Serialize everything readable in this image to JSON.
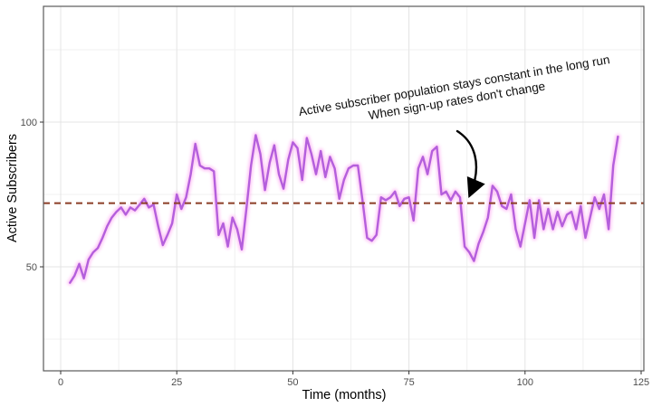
{
  "chart_data": {
    "type": "line",
    "title": "",
    "xlabel": "Time (months)",
    "ylabel": "Active Subscribers",
    "xlim": [
      -3.7,
      125.6
    ],
    "ylim": [
      14,
      140
    ],
    "grid": true,
    "legend": "none",
    "x_ticks": [
      0,
      25,
      50,
      75,
      100,
      125
    ],
    "x_tick_labels": [
      "0",
      "25",
      "50",
      "75",
      "100",
      "125"
    ],
    "x_minor_ticks": [
      12.5,
      37.5,
      62.5,
      87.5,
      112.5
    ],
    "y_ticks": [
      50,
      100
    ],
    "y_tick_labels": [
      "50",
      "100"
    ],
    "y_minor_ticks": [
      25,
      75,
      125
    ],
    "series": [
      {
        "name": "active-subscribers",
        "color": "#b45fdc",
        "glow_color": "#ff9df0",
        "x": [
          2,
          3,
          4,
          5,
          6,
          7,
          8,
          9,
          10,
          11,
          12,
          13,
          14,
          15,
          16,
          17,
          18,
          19,
          20,
          21,
          22,
          23,
          24,
          25,
          26,
          27,
          28,
          29,
          30,
          31,
          32,
          33,
          34,
          35,
          36,
          37,
          38,
          39,
          40,
          41,
          42,
          43,
          44,
          45,
          46,
          47,
          48,
          49,
          50,
          51,
          52,
          53,
          54,
          55,
          56,
          57,
          58,
          59,
          60,
          61,
          62,
          63,
          64,
          65,
          66,
          67,
          68,
          69,
          70,
          71,
          72,
          73,
          74,
          75,
          76,
          77,
          78,
          79,
          80,
          81,
          82,
          83,
          84,
          85,
          86,
          87,
          88,
          89,
          90,
          91,
          92,
          93,
          94,
          95,
          96,
          97,
          98,
          99,
          100,
          101,
          102,
          103,
          104,
          105,
          106,
          107,
          108,
          109,
          110,
          111,
          112,
          113,
          114,
          115,
          116,
          117,
          118,
          119,
          120
        ],
        "y": [
          44.5,
          47,
          51,
          46,
          52.5,
          55,
          56.5,
          60,
          64,
          67,
          69,
          70.5,
          68,
          70.5,
          69.5,
          71.5,
          73.5,
          70.5,
          71.5,
          64,
          57.5,
          61,
          65,
          75,
          70,
          74,
          82,
          92.5,
          85,
          84,
          84,
          83,
          61,
          65,
          57,
          67,
          63,
          56,
          70,
          85,
          95.5,
          89,
          76.5,
          86,
          92,
          82,
          77,
          87,
          93,
          91,
          80,
          94.5,
          89,
          82,
          90,
          81,
          88,
          84,
          73.5,
          80,
          84,
          85,
          85,
          73,
          60,
          59,
          61,
          74,
          73,
          74,
          76,
          71,
          73.5,
          74,
          66,
          84,
          88,
          82,
          90,
          91.5,
          75,
          76,
          73,
          76,
          74,
          57,
          55,
          52,
          58,
          62,
          67,
          78,
          76,
          71,
          70,
          75,
          63,
          57,
          65,
          73,
          60,
          73,
          63,
          70,
          63,
          69,
          64,
          68,
          69,
          63,
          71,
          60,
          67,
          74,
          70,
          75,
          63,
          85,
          95
        ]
      }
    ],
    "reference_line": {
      "value": 72,
      "style": "dashed",
      "color": "#8b3d26",
      "glow_color": "#ffb3f2"
    },
    "annotation": {
      "line1": "Active subscriber population stays constant in the long run",
      "line2": "When sign-up rates don't change",
      "rotation_deg": -9.6,
      "arrow_points_to": {
        "x": 88,
        "y": 72
      }
    },
    "colors": {
      "panel_border": "#5b5b5b",
      "grid_major": "#e4e4e4",
      "grid_minor": "#f0f0f0",
      "tick_label": "#4d4d4d",
      "tick_mark": "#333333",
      "arrow": "#000000"
    }
  }
}
